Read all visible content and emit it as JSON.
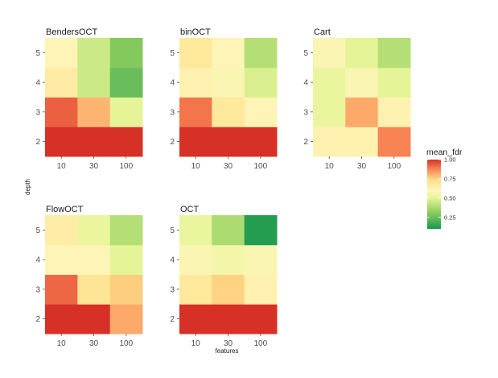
{
  "chart_data": {
    "type": "heatmap",
    "xlabel": "features",
    "ylabel": "depth",
    "x_categories": [
      "10",
      "30",
      "100"
    ],
    "y_categories": [
      "2",
      "3",
      "4",
      "5"
    ],
    "color_scale": {
      "name": "mean_fdr",
      "domain": [
        0.1,
        1.0
      ],
      "ticks": [
        "0.25",
        "0.50",
        "0.75",
        "1.00"
      ],
      "tick_values": [
        0.25,
        0.5,
        0.75,
        1.0
      ],
      "palette": "RdYlGn reversed (red = high, green = low)"
    },
    "panels": [
      {
        "name": "BendersOCT",
        "values": {
          "2": [
            1.0,
            1.0,
            1.0
          ],
          "3": [
            0.93,
            0.8,
            0.5
          ],
          "4": [
            0.66,
            0.45,
            0.25
          ],
          "5": [
            0.6,
            0.45,
            0.3
          ]
        }
      },
      {
        "name": "binOCT",
        "values": {
          "2": [
            1.0,
            1.0,
            1.0
          ],
          "3": [
            0.9,
            0.68,
            0.6
          ],
          "4": [
            0.62,
            0.58,
            0.48
          ],
          "5": [
            0.68,
            0.6,
            0.4
          ]
        }
      },
      {
        "name": "Cart",
        "values": {
          "2": [
            0.62,
            0.62,
            0.88
          ],
          "3": [
            0.52,
            0.82,
            0.62
          ],
          "4": [
            0.52,
            0.58,
            0.5
          ],
          "5": [
            0.58,
            0.5,
            0.4
          ]
        }
      },
      {
        "name": "FlowOCT",
        "values": {
          "2": [
            1.0,
            1.0,
            0.82
          ],
          "3": [
            0.92,
            0.7,
            0.76
          ],
          "4": [
            0.6,
            0.6,
            0.5
          ],
          "5": [
            0.65,
            0.52,
            0.4
          ]
        }
      },
      {
        "name": "OCT",
        "values": {
          "2": [
            1.0,
            1.0,
            1.0
          ],
          "3": [
            0.68,
            0.75,
            0.62
          ],
          "4": [
            0.58,
            0.55,
            0.58
          ],
          "5": [
            0.52,
            0.38,
            0.12
          ]
        }
      }
    ]
  }
}
